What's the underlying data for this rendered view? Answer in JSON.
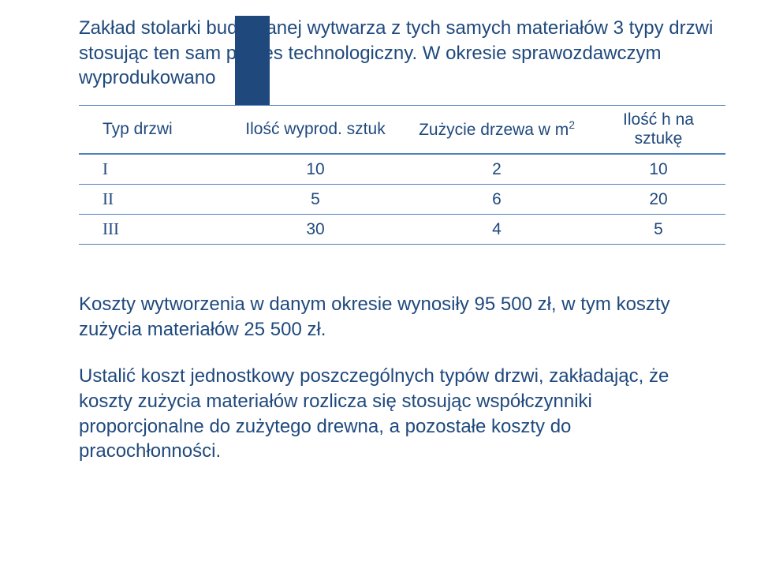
{
  "colors": {
    "text": "#1f497d",
    "table_border": "#4f81bd",
    "box": "#1f497d",
    "background": "#ffffff"
  },
  "heading_line1": "Zakład stolarki budowlanej wytwarza z tych samych materiałów 3 typy drzwi stosując  ten sam proces technologiczny. W okresie sprawozdawczym wyprodukowano",
  "table": {
    "headers": {
      "c0": "Typ drzwi",
      "c1": "Ilość wyprod. sztuk",
      "c2_prefix": "Zużycie drzewa w m",
      "c2_sup": "2",
      "c3": "Ilość h na sztukę"
    },
    "rows": [
      {
        "c0": "I",
        "c1": "10",
        "c2": "2",
        "c3": "10"
      },
      {
        "c0": "II",
        "c1": "5",
        "c2": "6",
        "c3": "20"
      },
      {
        "c0": "III",
        "c1": "30",
        "c2": "4",
        "c3": "5"
      }
    ]
  },
  "para1": "Koszty wytworzenia w danym okresie wynosiły 95 500 zł, w tym koszty zużycia materiałów 25 500 zł.",
  "para2": "Ustalić  koszt jednostkowy poszczególnych typów drzwi, zakładając, że koszty zużycia materiałów rozlicza się  stosując współczynniki proporcjonalne do zużytego drewna, a pozostałe koszty do pracochłonności."
}
